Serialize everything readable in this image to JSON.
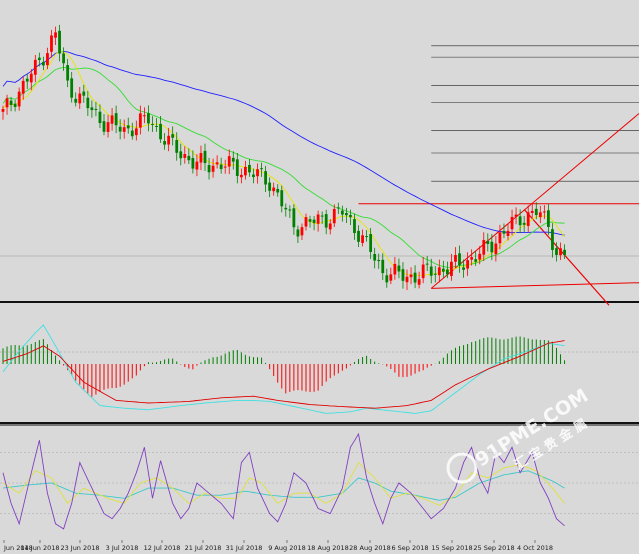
{
  "chart_data": {
    "type": "candlestick",
    "x_ticks": [
      "Jun 2018",
      "14 Jun 2018",
      "23 Jun 2018",
      "3 Jul 2018",
      "12 Jul 2018",
      "21 Jul 2018",
      "31 Jul 2018",
      "9 Aug 2018",
      "18 Aug 2018",
      "28 Aug 2018",
      "6 Sep 2018",
      "15 Sep 2018",
      "25 Sep 2018",
      "4 Oct 2018"
    ],
    "price_range": [
      0,
      100
    ],
    "bull_color": "#ff0000",
    "bear_color": "#008000",
    "ma_fast_color": "#e6e600",
    "ma_mid_color": "#33dd33",
    "ma_slow_color": "#2020ff",
    "price_waypoints": [
      [
        0,
        64
      ],
      [
        8,
        80
      ],
      [
        13,
        92
      ],
      [
        16,
        74
      ],
      [
        24,
        62
      ],
      [
        30,
        58
      ],
      [
        36,
        62
      ],
      [
        42,
        52
      ],
      [
        48,
        46
      ],
      [
        54,
        46
      ],
      [
        60,
        44
      ],
      [
        66,
        40
      ],
      [
        72,
        24
      ],
      [
        78,
        26
      ],
      [
        84,
        29
      ],
      [
        88,
        22
      ],
      [
        94,
        8
      ],
      [
        100,
        6
      ],
      [
        106,
        8
      ],
      [
        112,
        10
      ],
      [
        118,
        14
      ],
      [
        124,
        22
      ],
      [
        128,
        27
      ],
      [
        132,
        29
      ],
      [
        135,
        25
      ],
      [
        137,
        14
      ]
    ],
    "macd_range": [
      -1,
      1
    ],
    "macd_hist_waypoints": [
      [
        0,
        0.3
      ],
      [
        10,
        0.45
      ],
      [
        14,
        0.1
      ],
      [
        18,
        -0.35
      ],
      [
        22,
        -0.6
      ],
      [
        28,
        -0.45
      ],
      [
        33,
        -0.25
      ],
      [
        36,
        0.05
      ],
      [
        42,
        0.08
      ],
      [
        47,
        -0.1
      ],
      [
        52,
        0.15
      ],
      [
        58,
        0.25
      ],
      [
        64,
        0.1
      ],
      [
        70,
        -0.55
      ],
      [
        78,
        -0.5
      ],
      [
        84,
        -0.1
      ],
      [
        90,
        0.15
      ],
      [
        94,
        0
      ],
      [
        98,
        -0.25
      ],
      [
        104,
        -0.15
      ],
      [
        110,
        0.2
      ],
      [
        116,
        0.45
      ],
      [
        122,
        0.5
      ],
      [
        128,
        0.5
      ],
      [
        132,
        0.5
      ],
      [
        136,
        0.4
      ],
      [
        139,
        0.1
      ]
    ],
    "macd_signal_waypoints": [
      [
        0,
        0.05
      ],
      [
        6,
        0.2
      ],
      [
        10,
        0.35
      ],
      [
        14,
        0.15
      ],
      [
        20,
        -0.35
      ],
      [
        28,
        -0.7
      ],
      [
        36,
        -0.75
      ],
      [
        46,
        -0.72
      ],
      [
        54,
        -0.65
      ],
      [
        62,
        -0.62
      ],
      [
        68,
        -0.7
      ],
      [
        76,
        -0.78
      ],
      [
        84,
        -0.82
      ],
      [
        92,
        -0.85
      ],
      [
        100,
        -0.8
      ],
      [
        106,
        -0.7
      ],
      [
        112,
        -0.4
      ],
      [
        120,
        -0.1
      ],
      [
        128,
        0.15
      ],
      [
        135,
        0.4
      ],
      [
        139,
        0.45
      ]
    ],
    "macd_line_waypoints": [
      [
        0,
        -0.15
      ],
      [
        4,
        0.25
      ],
      [
        8,
        0.6
      ],
      [
        10,
        0.75
      ],
      [
        13,
        0.35
      ],
      [
        18,
        -0.35
      ],
      [
        24,
        -0.8
      ],
      [
        30,
        -0.85
      ],
      [
        36,
        -0.88
      ],
      [
        44,
        -0.8
      ],
      [
        50,
        -0.75
      ],
      [
        58,
        -0.7
      ],
      [
        62,
        -0.7
      ],
      [
        66,
        -0.72
      ],
      [
        74,
        -0.85
      ],
      [
        80,
        -0.95
      ],
      [
        86,
        -0.92
      ],
      [
        90,
        -0.85
      ],
      [
        96,
        -0.9
      ],
      [
        102,
        -0.95
      ],
      [
        106,
        -0.9
      ],
      [
        112,
        -0.55
      ],
      [
        118,
        -0.2
      ],
      [
        124,
        0.1
      ],
      [
        130,
        0.25
      ],
      [
        135,
        0.4
      ],
      [
        139,
        0.35
      ]
    ],
    "stoch_range": [
      0,
      100
    ],
    "stoch_k_waypoints": [
      [
        0,
        60
      ],
      [
        2,
        30
      ],
      [
        4,
        10
      ],
      [
        7,
        60
      ],
      [
        9,
        92
      ],
      [
        11,
        40
      ],
      [
        13,
        10
      ],
      [
        15,
        5
      ],
      [
        17,
        30
      ],
      [
        19,
        70
      ],
      [
        22,
        45
      ],
      [
        25,
        20
      ],
      [
        27,
        15
      ],
      [
        29,
        25
      ],
      [
        31,
        40
      ],
      [
        33,
        60
      ],
      [
        35,
        85
      ],
      [
        37,
        35
      ],
      [
        39,
        72
      ],
      [
        42,
        30
      ],
      [
        44,
        15
      ],
      [
        46,
        25
      ],
      [
        48,
        50
      ],
      [
        51,
        40
      ],
      [
        54,
        30
      ],
      [
        57,
        15
      ],
      [
        59,
        70
      ],
      [
        61,
        80
      ],
      [
        63,
        45
      ],
      [
        66,
        20
      ],
      [
        68,
        12
      ],
      [
        70,
        30
      ],
      [
        72,
        60
      ],
      [
        75,
        50
      ],
      [
        78,
        25
      ],
      [
        81,
        20
      ],
      [
        84,
        45
      ],
      [
        86,
        85
      ],
      [
        88,
        98
      ],
      [
        90,
        55
      ],
      [
        92,
        30
      ],
      [
        94,
        10
      ],
      [
        96,
        35
      ],
      [
        98,
        50
      ],
      [
        101,
        40
      ],
      [
        104,
        25
      ],
      [
        106,
        15
      ],
      [
        109,
        25
      ],
      [
        112,
        45
      ],
      [
        114,
        70
      ],
      [
        116,
        85
      ],
      [
        118,
        55
      ],
      [
        120,
        40
      ],
      [
        122,
        80
      ],
      [
        124,
        70
      ],
      [
        126,
        85
      ],
      [
        128,
        60
      ],
      [
        131,
        80
      ],
      [
        133,
        50
      ],
      [
        135,
        35
      ],
      [
        137,
        15
      ],
      [
        139,
        8
      ]
    ],
    "stoch_d_waypoints": [
      [
        0,
        50
      ],
      [
        4,
        40
      ],
      [
        8,
        62
      ],
      [
        12,
        55
      ],
      [
        16,
        30
      ],
      [
        20,
        45
      ],
      [
        26,
        35
      ],
      [
        30,
        30
      ],
      [
        34,
        50
      ],
      [
        38,
        55
      ],
      [
        42,
        45
      ],
      [
        46,
        30
      ],
      [
        50,
        40
      ],
      [
        54,
        35
      ],
      [
        58,
        35
      ],
      [
        61,
        55
      ],
      [
        64,
        50
      ],
      [
        68,
        30
      ],
      [
        72,
        40
      ],
      [
        76,
        40
      ],
      [
        80,
        30
      ],
      [
        84,
        40
      ],
      [
        88,
        70
      ],
      [
        92,
        55
      ],
      [
        96,
        35
      ],
      [
        100,
        40
      ],
      [
        104,
        35
      ],
      [
        108,
        28
      ],
      [
        112,
        38
      ],
      [
        116,
        60
      ],
      [
        120,
        55
      ],
      [
        124,
        65
      ],
      [
        128,
        68
      ],
      [
        132,
        62
      ],
      [
        136,
        45
      ],
      [
        139,
        30
      ]
    ],
    "stoch_signal_waypoints": [
      [
        0,
        45
      ],
      [
        6,
        48
      ],
      [
        12,
        50
      ],
      [
        18,
        40
      ],
      [
        24,
        38
      ],
      [
        30,
        35
      ],
      [
        36,
        45
      ],
      [
        42,
        45
      ],
      [
        48,
        38
      ],
      [
        54,
        38
      ],
      [
        60,
        42
      ],
      [
        66,
        38
      ],
      [
        72,
        36
      ],
      [
        78,
        36
      ],
      [
        84,
        40
      ],
      [
        88,
        55
      ],
      [
        92,
        50
      ],
      [
        96,
        42
      ],
      [
        102,
        38
      ],
      [
        108,
        33
      ],
      [
        112,
        36
      ],
      [
        118,
        50
      ],
      [
        124,
        58
      ],
      [
        130,
        62
      ],
      [
        136,
        52
      ],
      [
        139,
        45
      ]
    ],
    "horizontal_levels": [
      88,
      84,
      74,
      68,
      58,
      50,
      40
    ],
    "watermark": {
      "domain": "91PME.COM",
      "cjk": "汇 宝 贵 金 属"
    }
  }
}
